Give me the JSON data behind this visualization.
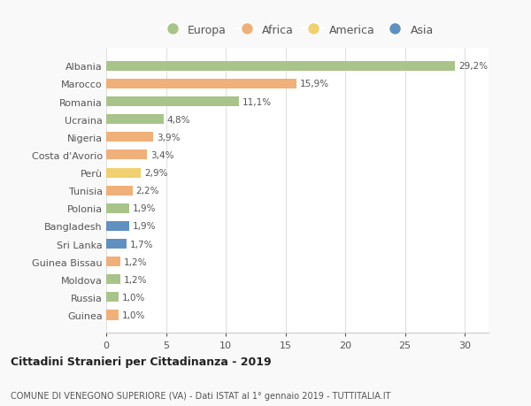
{
  "countries": [
    "Albania",
    "Marocco",
    "Romania",
    "Ucraina",
    "Nigeria",
    "Costa d'Avorio",
    "Perù",
    "Tunisia",
    "Polonia",
    "Bangladesh",
    "Sri Lanka",
    "Guinea Bissau",
    "Moldova",
    "Russia",
    "Guinea"
  ],
  "values": [
    29.2,
    15.9,
    11.1,
    4.8,
    3.9,
    3.4,
    2.9,
    2.2,
    1.9,
    1.9,
    1.7,
    1.2,
    1.2,
    1.0,
    1.0
  ],
  "labels": [
    "29,2%",
    "15,9%",
    "11,1%",
    "4,8%",
    "3,9%",
    "3,4%",
    "2,9%",
    "2,2%",
    "1,9%",
    "1,9%",
    "1,7%",
    "1,2%",
    "1,2%",
    "1,0%",
    "1,0%"
  ],
  "continents": [
    "Europa",
    "Africa",
    "Europa",
    "Europa",
    "Africa",
    "Africa",
    "America",
    "Africa",
    "Europa",
    "Asia",
    "Asia",
    "Africa",
    "Europa",
    "Europa",
    "Africa"
  ],
  "colors": {
    "Europa": "#a8c48a",
    "Africa": "#f0b07a",
    "America": "#f0d070",
    "Asia": "#6090c0"
  },
  "legend_order": [
    "Europa",
    "Africa",
    "America",
    "Asia"
  ],
  "title": "Cittadini Stranieri per Cittadinanza - 2019",
  "subtitle": "COMUNE DI VENEGONO SUPERIORE (VA) - Dati ISTAT al 1° gennaio 2019 - TUTTITALIA.IT",
  "xlim": [
    0,
    32
  ],
  "xticks": [
    0,
    5,
    10,
    15,
    20,
    25,
    30
  ],
  "background_color": "#f9f9f9",
  "bar_background": "#ffffff",
  "bar_height": 0.55
}
